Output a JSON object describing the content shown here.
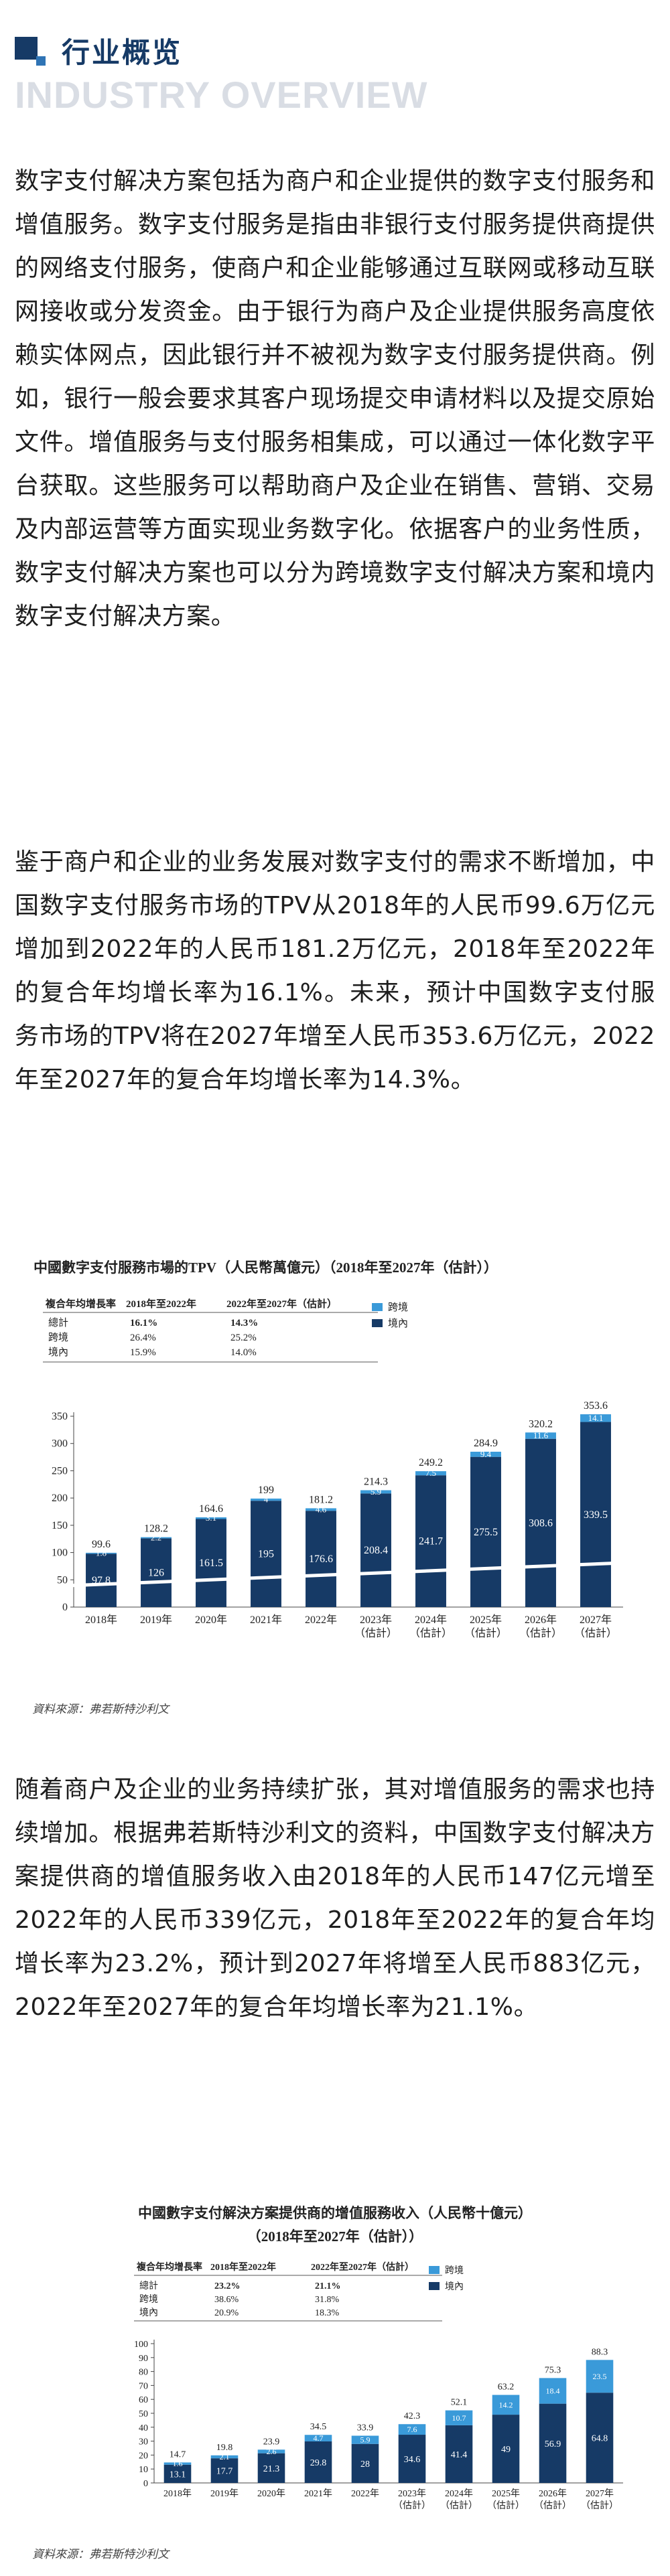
{
  "header": {
    "title": "行业概览",
    "subtitle": "INDUSTRY OVERVIEW"
  },
  "paragraphs": {
    "p1": "数字支付解决方案包括为商户和企业提供的数字支付服务和增值服务。数字支付服务是指由非银行支付服务提供商提供的网络支付服务，使商户和企业能够通过互联网或移动互联网接收或分发资金。由于银行为商户及企业提供服务高度依赖实体网点，因此银行并不被视为数字支付服务提供商。例如，银行一般会要求其客户现场提交申请材料以及提交原始文件。增值服务与支付服务相集成，可以通过一体化数字平台获取。这些服务可以帮助商户及企业在销售、营销、交易及内部运营等方面实现业务数字化。依据客户的业务性质，数字支付解决方案也可以分为跨境数字支付解决方案和境内数字支付解决方案。",
    "p2": "鉴于商户和企业的业务发展对数字支付的需求不断增加，中国数字支付服务市场的TPV从2018年的人民币99.6万亿元增加到2022年的人民币181.2万亿元，2018年至2022年的复合年均增长率为16.1%。未来，预计中国数字支付服务市场的TPV将在2027年增至人民币353.6万亿元，2022年至2027年的复合年均增长率为14.3%。",
    "p3": "随着商户及企业的业务持续扩张，其对增值服务的需求也持续增加。根据弗若斯特沙利文的资料，中国数字支付解决方案提供商的增值服务收入由2018年的人民币147亿元增至2022年的人民币339亿元，2018年至2022年的复合年均增长率为23.2%，预计到2027年将增至人民币883亿元，2022年至2027年的复合年均增长率为21.1%。"
  },
  "colors": {
    "dark": "#163a66",
    "light": "#3a9ad9",
    "accent": "#163a66"
  },
  "chart_data": [
    {
      "type": "bar",
      "stacked": true,
      "title": "中國數字支付服務市場的TPV（人民幣萬億元）（2018年至2027年（估計））",
      "categories": [
        "2018年",
        "2019年",
        "2020年",
        "2021年",
        "2022年",
        "2023年\n（估計）",
        "2024年\n（估計）",
        "2025年\n（估計）",
        "2026年\n（估計）",
        "2027年\n（估計）"
      ],
      "series": [
        {
          "name": "境內",
          "values": [
            97.8,
            126.0,
            161.5,
            195.0,
            176.6,
            208.4,
            241.7,
            275.5,
            308.6,
            339.5
          ]
        },
        {
          "name": "跨境",
          "values": [
            1.8,
            2.2,
            3.1,
            4.0,
            4.6,
            5.9,
            7.5,
            9.4,
            11.6,
            14.1
          ]
        }
      ],
      "totals": [
        99.6,
        128.2,
        164.6,
        199.0,
        181.2,
        214.3,
        249.2,
        284.9,
        320.2,
        353.6
      ],
      "ylim": [
        0,
        350
      ],
      "yticks": [
        0,
        50,
        100,
        150,
        200,
        250,
        300,
        350
      ],
      "cagr_table": {
        "header": [
          "複合年均增長率",
          "2018年至2022年",
          "2022年至2027年（估計）"
        ],
        "rows": [
          [
            "總計",
            "16.1%",
            "14.3%"
          ],
          [
            "跨境",
            "26.4%",
            "25.2%"
          ],
          [
            "境內",
            "15.9%",
            "14.0%"
          ]
        ]
      },
      "source": "資料來源：弗若斯特沙利文"
    },
    {
      "type": "bar",
      "stacked": true,
      "title": "中國數字支付解決方案提供商的增值服務收入（人民幣十億元）",
      "subtitle": "（2018年至2027年（估計））",
      "categories": [
        "2018年",
        "2019年",
        "2020年",
        "2021年",
        "2022年",
        "2023年\n（估計）",
        "2024年\n（估計）",
        "2025年\n（估計）",
        "2026年\n（估計）",
        "2027年\n（估計）"
      ],
      "series": [
        {
          "name": "境內",
          "values": [
            13.1,
            17.7,
            21.3,
            29.8,
            28.0,
            34.6,
            41.4,
            49.0,
            56.9,
            64.8
          ]
        },
        {
          "name": "跨境",
          "values": [
            1.6,
            2.1,
            2.6,
            4.7,
            5.9,
            7.6,
            10.7,
            14.2,
            18.4,
            23.5
          ]
        }
      ],
      "totals": [
        14.7,
        19.8,
        23.9,
        34.5,
        33.9,
        42.3,
        52.1,
        63.2,
        75.3,
        88.3
      ],
      "ylim": [
        0,
        100
      ],
      "yticks": [
        0,
        10,
        20,
        30,
        40,
        50,
        60,
        70,
        80,
        90,
        100
      ],
      "cagr_table": {
        "header": [
          "複合年均增長率",
          "2018年至2022年",
          "2022年至2027年（估計）"
        ],
        "rows": [
          [
            "總計",
            "23.2%",
            "21.1%"
          ],
          [
            "跨境",
            "38.6%",
            "31.8%"
          ],
          [
            "境內",
            "20.9%",
            "18.3%"
          ]
        ]
      },
      "source": "資料來源：弗若斯特沙利文"
    }
  ]
}
